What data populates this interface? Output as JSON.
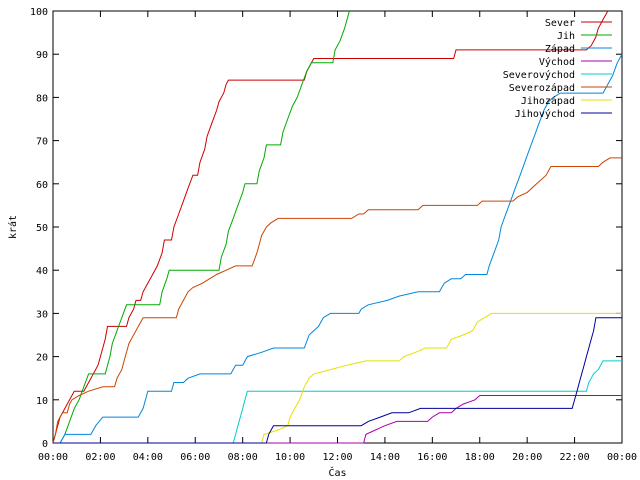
{
  "chart_data": {
    "type": "line",
    "title": "",
    "xlabel": "Čas",
    "ylabel": "krát",
    "xlim": [
      0,
      24
    ],
    "ylim": [
      0,
      100
    ],
    "grid": false,
    "legend_position": "top-right",
    "x_ticks": [
      {
        "value": 0,
        "label": "00:00"
      },
      {
        "value": 2,
        "label": "02:00"
      },
      {
        "value": 4,
        "label": "04:00"
      },
      {
        "value": 6,
        "label": "06:00"
      },
      {
        "value": 8,
        "label": "08:00"
      },
      {
        "value": 10,
        "label": "10:00"
      },
      {
        "value": 12,
        "label": "12:00"
      },
      {
        "value": 14,
        "label": "14:00"
      },
      {
        "value": 16,
        "label": "16:00"
      },
      {
        "value": 18,
        "label": "18:00"
      },
      {
        "value": 20,
        "label": "20:00"
      },
      {
        "value": 22,
        "label": "22:00"
      },
      {
        "value": 24,
        "label": "00:00"
      }
    ],
    "y_ticks": [
      {
        "value": 0,
        "label": "0"
      },
      {
        "value": 10,
        "label": "10"
      },
      {
        "value": 20,
        "label": "20"
      },
      {
        "value": 30,
        "label": "30"
      },
      {
        "value": 40,
        "label": "40"
      },
      {
        "value": 50,
        "label": "50"
      },
      {
        "value": 60,
        "label": "60"
      },
      {
        "value": 70,
        "label": "70"
      },
      {
        "value": 80,
        "label": "80"
      },
      {
        "value": 90,
        "label": "90"
      },
      {
        "value": 100,
        "label": "100"
      }
    ],
    "series": [
      {
        "name": "Sever",
        "color": "#cc0000",
        "points": [
          [
            0.0,
            0
          ],
          [
            0.1,
            2
          ],
          [
            0.2,
            4
          ],
          [
            0.3,
            6
          ],
          [
            0.5,
            8
          ],
          [
            0.7,
            10
          ],
          [
            0.9,
            12
          ],
          [
            1.3,
            12
          ],
          [
            1.5,
            14
          ],
          [
            1.7,
            16
          ],
          [
            1.9,
            18
          ],
          [
            2.0,
            20
          ],
          [
            2.1,
            22
          ],
          [
            2.2,
            24
          ],
          [
            2.3,
            27
          ],
          [
            3.1,
            27
          ],
          [
            3.2,
            29
          ],
          [
            3.4,
            31
          ],
          [
            3.5,
            33
          ],
          [
            3.7,
            33
          ],
          [
            3.8,
            35
          ],
          [
            4.0,
            37
          ],
          [
            4.2,
            39
          ],
          [
            4.4,
            41
          ],
          [
            4.6,
            44
          ],
          [
            4.7,
            47
          ],
          [
            5.0,
            47
          ],
          [
            5.1,
            50
          ],
          [
            5.3,
            53
          ],
          [
            5.5,
            56
          ],
          [
            5.7,
            59
          ],
          [
            5.9,
            62
          ],
          [
            6.1,
            62
          ],
          [
            6.2,
            65
          ],
          [
            6.4,
            68
          ],
          [
            6.5,
            71
          ],
          [
            6.7,
            74
          ],
          [
            6.9,
            77
          ],
          [
            7.0,
            79
          ],
          [
            7.2,
            81
          ],
          [
            7.3,
            83
          ],
          [
            7.4,
            84
          ],
          [
            10.6,
            84
          ],
          [
            10.7,
            86
          ],
          [
            10.9,
            88
          ],
          [
            11.0,
            89
          ],
          [
            16.9,
            89
          ],
          [
            17.0,
            91
          ],
          [
            22.5,
            91
          ],
          [
            22.7,
            92
          ],
          [
            22.9,
            94
          ],
          [
            23.0,
            96
          ],
          [
            23.2,
            98
          ],
          [
            23.4,
            100
          ]
        ]
      },
      {
        "name": "Jih",
        "color": "#00aa00",
        "points": [
          [
            0.0,
            0
          ],
          [
            0.3,
            0
          ],
          [
            0.5,
            2
          ],
          [
            0.7,
            5
          ],
          [
            0.9,
            8
          ],
          [
            1.1,
            10
          ],
          [
            1.3,
            13
          ],
          [
            1.5,
            16
          ],
          [
            2.2,
            16
          ],
          [
            2.4,
            20
          ],
          [
            2.5,
            23
          ],
          [
            2.7,
            26
          ],
          [
            2.9,
            29
          ],
          [
            3.1,
            32
          ],
          [
            4.5,
            32
          ],
          [
            4.6,
            35
          ],
          [
            4.8,
            38
          ],
          [
            4.9,
            40
          ],
          [
            7.0,
            40
          ],
          [
            7.1,
            43
          ],
          [
            7.3,
            46
          ],
          [
            7.4,
            49
          ],
          [
            7.6,
            52
          ],
          [
            7.8,
            55
          ],
          [
            8.0,
            58
          ],
          [
            8.1,
            60
          ],
          [
            8.6,
            60
          ],
          [
            8.7,
            63
          ],
          [
            8.9,
            66
          ],
          [
            9.0,
            69
          ],
          [
            9.6,
            69
          ],
          [
            9.7,
            72
          ],
          [
            9.9,
            75
          ],
          [
            10.1,
            78
          ],
          [
            10.3,
            80
          ],
          [
            10.5,
            83
          ],
          [
            10.7,
            86
          ],
          [
            10.9,
            88
          ],
          [
            11.8,
            88
          ],
          [
            11.9,
            91
          ],
          [
            12.1,
            93
          ],
          [
            12.3,
            96
          ],
          [
            12.5,
            100
          ]
        ]
      },
      {
        "name": "Západ",
        "color": "#0088dd",
        "points": [
          [
            0.0,
            0
          ],
          [
            0.3,
            0
          ],
          [
            0.5,
            2
          ],
          [
            1.6,
            2
          ],
          [
            1.8,
            4
          ],
          [
            2.1,
            6
          ],
          [
            3.6,
            6
          ],
          [
            3.8,
            8
          ],
          [
            3.9,
            10
          ],
          [
            4.0,
            12
          ],
          [
            5.0,
            12
          ],
          [
            5.1,
            14
          ],
          [
            5.5,
            14
          ],
          [
            5.7,
            15
          ],
          [
            6.2,
            16
          ],
          [
            7.5,
            16
          ],
          [
            7.7,
            18
          ],
          [
            8.0,
            18
          ],
          [
            8.2,
            20
          ],
          [
            8.8,
            21
          ],
          [
            9.3,
            22
          ],
          [
            10.6,
            22
          ],
          [
            10.8,
            25
          ],
          [
            11.2,
            27
          ],
          [
            11.4,
            29
          ],
          [
            11.7,
            30
          ],
          [
            12.9,
            30
          ],
          [
            13.0,
            31
          ],
          [
            13.3,
            32
          ],
          [
            14.1,
            33
          ],
          [
            14.6,
            34
          ],
          [
            15.4,
            35
          ],
          [
            16.3,
            35
          ],
          [
            16.5,
            37
          ],
          [
            16.8,
            38
          ],
          [
            17.2,
            38
          ],
          [
            17.4,
            39
          ],
          [
            18.3,
            39
          ],
          [
            18.4,
            41
          ],
          [
            18.6,
            44
          ],
          [
            18.8,
            47
          ],
          [
            18.9,
            50
          ],
          [
            19.1,
            53
          ],
          [
            19.3,
            56
          ],
          [
            19.5,
            59
          ],
          [
            19.7,
            62
          ],
          [
            19.9,
            65
          ],
          [
            20.1,
            68
          ],
          [
            20.3,
            71
          ],
          [
            20.5,
            74
          ],
          [
            20.7,
            77
          ],
          [
            20.9,
            79
          ],
          [
            21.1,
            80
          ],
          [
            21.4,
            81
          ],
          [
            23.2,
            81
          ],
          [
            23.4,
            83
          ],
          [
            23.6,
            85
          ],
          [
            23.8,
            88
          ],
          [
            24.0,
            90
          ]
        ]
      },
      {
        "name": "Východ",
        "color": "#aa00aa",
        "points": [
          [
            0.0,
            0
          ],
          [
            13.1,
            0
          ],
          [
            13.2,
            2
          ],
          [
            13.6,
            3
          ],
          [
            14.0,
            4
          ],
          [
            14.5,
            5
          ],
          [
            15.8,
            5
          ],
          [
            16.0,
            6
          ],
          [
            16.3,
            7
          ],
          [
            16.8,
            7
          ],
          [
            17.0,
            8
          ],
          [
            17.3,
            9
          ],
          [
            17.8,
            10
          ],
          [
            18.0,
            11
          ],
          [
            24.0,
            11
          ]
        ]
      },
      {
        "name": "Severovýchod",
        "color": "#00cccc",
        "points": [
          [
            0.0,
            0
          ],
          [
            7.6,
            0
          ],
          [
            7.7,
            2
          ],
          [
            7.8,
            4
          ],
          [
            7.9,
            6
          ],
          [
            8.0,
            8
          ],
          [
            8.1,
            10
          ],
          [
            8.2,
            12
          ],
          [
            22.5,
            12
          ],
          [
            22.6,
            14
          ],
          [
            22.8,
            16
          ],
          [
            23.0,
            17
          ],
          [
            23.2,
            19
          ],
          [
            24.0,
            19
          ]
        ]
      },
      {
        "name": "Severozápad",
        "color": "#cc4400",
        "points": [
          [
            0.0,
            0
          ],
          [
            0.1,
            2
          ],
          [
            0.2,
            5
          ],
          [
            0.4,
            7
          ],
          [
            0.6,
            7
          ],
          [
            0.7,
            9
          ],
          [
            0.8,
            10
          ],
          [
            1.1,
            11
          ],
          [
            1.5,
            12
          ],
          [
            2.1,
            13
          ],
          [
            2.6,
            13
          ],
          [
            2.7,
            15
          ],
          [
            2.9,
            17
          ],
          [
            3.0,
            19
          ],
          [
            3.1,
            21
          ],
          [
            3.2,
            23
          ],
          [
            3.4,
            25
          ],
          [
            3.6,
            27
          ],
          [
            3.8,
            29
          ],
          [
            5.2,
            29
          ],
          [
            5.3,
            31
          ],
          [
            5.5,
            33
          ],
          [
            5.7,
            35
          ],
          [
            5.9,
            36
          ],
          [
            6.3,
            37
          ],
          [
            6.6,
            38
          ],
          [
            6.9,
            39
          ],
          [
            7.3,
            40
          ],
          [
            7.7,
            41
          ],
          [
            8.4,
            41
          ],
          [
            8.6,
            44
          ],
          [
            8.7,
            46
          ],
          [
            8.8,
            48
          ],
          [
            9.0,
            50
          ],
          [
            9.2,
            51
          ],
          [
            9.5,
            52
          ],
          [
            12.6,
            52
          ],
          [
            12.9,
            53
          ],
          [
            13.1,
            53
          ],
          [
            13.3,
            54
          ],
          [
            15.4,
            54
          ],
          [
            15.6,
            55
          ],
          [
            17.9,
            55
          ],
          [
            18.1,
            56
          ],
          [
            19.4,
            56
          ],
          [
            19.6,
            57
          ],
          [
            20.0,
            58
          ],
          [
            20.4,
            60
          ],
          [
            20.8,
            62
          ],
          [
            21.0,
            64
          ],
          [
            23.0,
            64
          ],
          [
            23.2,
            65
          ],
          [
            23.5,
            66
          ],
          [
            24.0,
            66
          ]
        ]
      },
      {
        "name": "Jihozápad",
        "color": "#e8e000",
        "points": [
          [
            0.0,
            0
          ],
          [
            8.8,
            0
          ],
          [
            8.9,
            2
          ],
          [
            9.5,
            3
          ],
          [
            9.9,
            4
          ],
          [
            10.0,
            6
          ],
          [
            10.2,
            8
          ],
          [
            10.4,
            10
          ],
          [
            10.6,
            13
          ],
          [
            10.8,
            15
          ],
          [
            11.0,
            16
          ],
          [
            11.7,
            17
          ],
          [
            12.4,
            18
          ],
          [
            13.2,
            19
          ],
          [
            14.6,
            19
          ],
          [
            14.8,
            20
          ],
          [
            15.3,
            21
          ],
          [
            15.7,
            22
          ],
          [
            16.6,
            22
          ],
          [
            16.8,
            24
          ],
          [
            17.3,
            25
          ],
          [
            17.7,
            26
          ],
          [
            17.9,
            28
          ],
          [
            18.2,
            29
          ],
          [
            18.5,
            30
          ],
          [
            24.0,
            30
          ]
        ]
      },
      {
        "name": "Jihovýchod",
        "color": "#000099",
        "points": [
          [
            0.0,
            0
          ],
          [
            9.0,
            0
          ],
          [
            9.1,
            2
          ],
          [
            9.2,
            3
          ],
          [
            9.3,
            4
          ],
          [
            13.0,
            4
          ],
          [
            13.3,
            5
          ],
          [
            13.8,
            6
          ],
          [
            14.3,
            7
          ],
          [
            15.0,
            7
          ],
          [
            15.5,
            8
          ],
          [
            16.0,
            8
          ],
          [
            21.9,
            8
          ],
          [
            22.0,
            10
          ],
          [
            22.1,
            12
          ],
          [
            22.2,
            14
          ],
          [
            22.3,
            16
          ],
          [
            22.4,
            18
          ],
          [
            22.5,
            20
          ],
          [
            22.6,
            22
          ],
          [
            22.7,
            24
          ],
          [
            22.8,
            26
          ],
          [
            22.9,
            29
          ],
          [
            24.0,
            29
          ]
        ]
      }
    ]
  }
}
